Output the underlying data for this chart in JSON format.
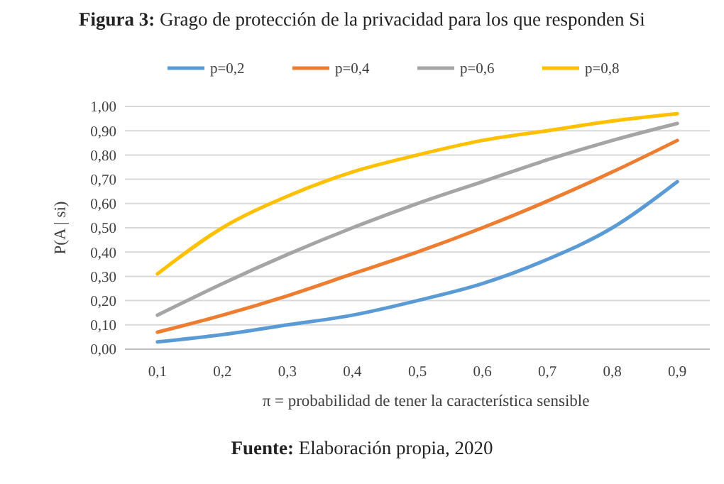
{
  "chart_data": {
    "type": "line",
    "title": "Figura 3: Grago de protección de la privacidad para los que responden Si",
    "xlabel": "π = probabilidad de tener la característica sensible",
    "ylabel": "P(A | si)",
    "annotations": [
      "Fuente: Elaboración propia, 2020"
    ],
    "categories": [
      "0,1",
      "0,2",
      "0,3",
      "0,4",
      "0,5",
      "0,6",
      "0,7",
      "0,8",
      "0,9"
    ],
    "series": [
      {
        "name": "p=0,2",
        "color": "#5b9bd5",
        "values": [
          0.03,
          0.06,
          0.1,
          0.14,
          0.2,
          0.27,
          0.37,
          0.5,
          0.69
        ]
      },
      {
        "name": "p=0,4",
        "color": "#ed7d31",
        "values": [
          0.07,
          0.14,
          0.22,
          0.31,
          0.4,
          0.5,
          0.61,
          0.73,
          0.86
        ]
      },
      {
        "name": "p=0,6",
        "color": "#a5a5a5",
        "values": [
          0.14,
          0.27,
          0.39,
          0.5,
          0.6,
          0.69,
          0.78,
          0.86,
          0.93
        ]
      },
      {
        "name": "p=0,8",
        "color": "#ffc000",
        "values": [
          0.31,
          0.5,
          0.63,
          0.73,
          0.8,
          0.86,
          0.9,
          0.94,
          0.97
        ]
      }
    ],
    "ylim": [
      0,
      1
    ],
    "yticks": [
      {
        "value": 0,
        "label": "0,00"
      },
      {
        "value": 0.1,
        "label": "0,10"
      },
      {
        "value": 0.2,
        "label": "0,20"
      },
      {
        "value": 0.3,
        "label": "0,30"
      },
      {
        "value": 0.4,
        "label": "0,40"
      },
      {
        "value": 0.5,
        "label": "0,50"
      },
      {
        "value": 0.6,
        "label": "0,60"
      },
      {
        "value": 0.7,
        "label": "0,70"
      },
      {
        "value": 0.8,
        "label": "0,80"
      },
      {
        "value": 0.9,
        "label": "0,90"
      },
      {
        "value": 1,
        "label": "1,00"
      }
    ],
    "grid": "y",
    "legend": "top",
    "marker": "none",
    "line_style": "solid"
  }
}
